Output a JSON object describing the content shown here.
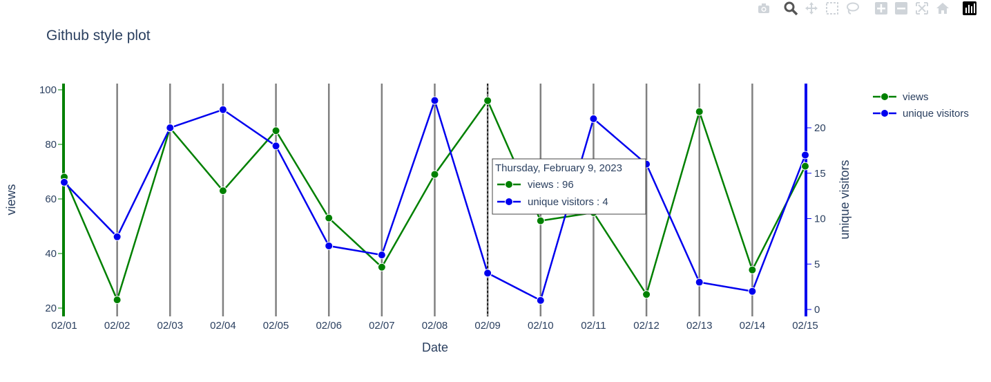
{
  "modebar": {
    "icons": [
      "camera-icon",
      "zoom-icon",
      "pan-icon",
      "box-select-icon",
      "lasso-icon",
      "zoom-in-icon",
      "zoom-out-icon",
      "autoscale-icon",
      "reset-axes-icon",
      "plotly-logo-icon"
    ]
  },
  "colors": {
    "views": "#008000",
    "unique_visitors": "#0000ee",
    "grid": "#808080",
    "text": "#2a3f5f"
  },
  "chart_data": {
    "type": "line",
    "title": "Github style plot",
    "xlabel": "Date",
    "ylabel": "views",
    "y2label": "unique visitors",
    "x": [
      "02/01",
      "02/02",
      "02/03",
      "02/04",
      "02/05",
      "02/06",
      "02/07",
      "02/08",
      "02/09",
      "02/10",
      "02/11",
      "02/12",
      "02/13",
      "02/14",
      "02/15"
    ],
    "ylim": [
      18,
      101
    ],
    "y2lim": [
      -1,
      25
    ],
    "yticks": [
      20,
      40,
      60,
      80,
      100
    ],
    "y2ticks": [
      0,
      5,
      10,
      15,
      20
    ],
    "series": [
      {
        "name": "views",
        "axis": "y",
        "values": [
          68,
          23,
          86,
          63,
          85,
          53,
          35,
          69,
          96,
          52,
          55,
          25,
          92,
          34,
          72
        ]
      },
      {
        "name": "unique visitors",
        "axis": "y2",
        "values": [
          14,
          8,
          20,
          22,
          18,
          7,
          6,
          23,
          4,
          1,
          21,
          16,
          3,
          2,
          17
        ]
      }
    ],
    "legend_position": "top-right",
    "vertical_grid": true,
    "hover": {
      "index": 8,
      "header": "Thursday, February  9, 2023",
      "lines": [
        "views : 96",
        "unique visitors : 4"
      ]
    }
  }
}
